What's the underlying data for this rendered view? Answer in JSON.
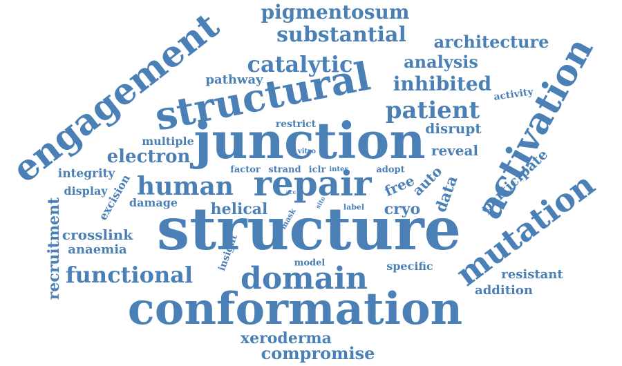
{
  "colors": {
    "word": "#4a80b6",
    "background": "#ffffff"
  },
  "words": {
    "structure": "structure",
    "conformation": "conformation",
    "junction": "junction",
    "structural": "structural",
    "engagement": "engagement",
    "activation": "activation",
    "mutation": "mutation",
    "repair": "repair",
    "domain": "domain",
    "human": "human",
    "functional": "functional",
    "patient": "patient",
    "catalytic": "catalytic",
    "substantial": "substantial",
    "pigmentosum": "pigmentosum",
    "architecture": "architecture",
    "analysis": "analysis",
    "inhibited": "inhibited",
    "electron": "electron",
    "compromise": "compromise",
    "xeroderma": "xeroderma",
    "crosslink": "crosslink",
    "anaemia": "anaemia",
    "recruitment": "recruitment",
    "disrupt": "disrupt",
    "reveal": "reveal",
    "participate": "participate",
    "data": "data",
    "auto": "auto",
    "free": "free",
    "cryo": "cryo",
    "helical": "helical",
    "damage": "damage",
    "excision": "excision",
    "integrity": "integrity",
    "display": "display",
    "multiple": "multiple",
    "pathway": "pathway",
    "restrict": "restrict",
    "activity": "activity",
    "resistant": "resistant",
    "addition": "addition",
    "specific": "specific",
    "model": "model",
    "insight": "insight",
    "mask": "mask",
    "label": "label",
    "site": "site",
    "acc": "acc",
    "factor": "factor",
    "strand": "strand",
    "iclr": "iclr",
    "inter": "inter",
    "adopt": "adopt",
    "vitro": "vitro"
  }
}
